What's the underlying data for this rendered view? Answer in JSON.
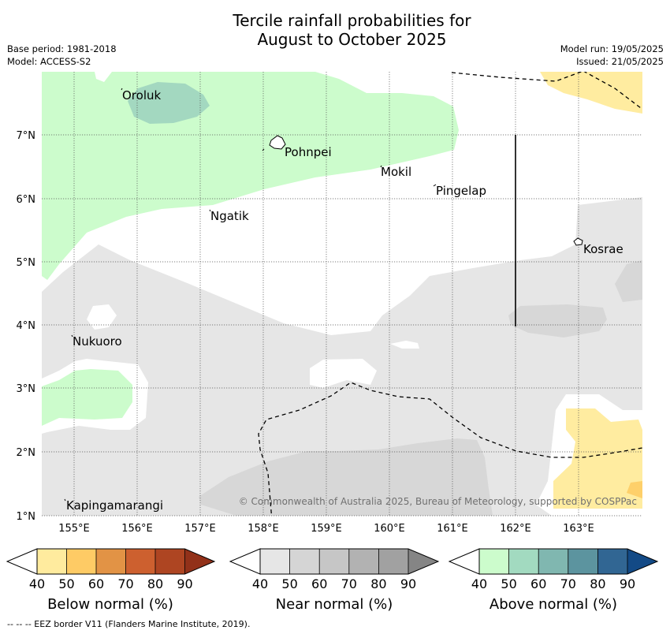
{
  "title": "Tercile rainfall probabilities for\nAugust to October 2025",
  "title_line1": "Tercile rainfall probabilities for",
  "title_line2": "August to October 2025",
  "base_period": "Base period: 1981-2018",
  "model": "Model: ACCESS-S2",
  "model_run": "Model run: 19/05/2025",
  "issued": "Issued: 21/05/2025",
  "map": {
    "x_ticks": [
      "155°E",
      "156°E",
      "157°E",
      "158°E",
      "159°E",
      "160°E",
      "161°E",
      "162°E",
      "163°E"
    ],
    "y_ticks": [
      "7°N",
      "6°N",
      "5°N",
      "4°N",
      "3°N",
      "2°N",
      "1°N"
    ],
    "places": [
      "Oroluk",
      "Pohnpei",
      "Mokil",
      "Pingelap",
      "Ngatik",
      "Kosrae",
      "Nukuoro",
      "Kapingamarangi"
    ],
    "copyright": "© Commonwealth of Australia 2025, Bureau of Meteorology, supported by COSPPac",
    "colors": {
      "above_40": "#ccfccc",
      "above_50": "#a3d8c0",
      "near_40": "#e6e6e6",
      "near_50": "#d7d7d7",
      "below_40": "#ffeca0",
      "below_50": "#fed06a"
    }
  },
  "colorbars": [
    {
      "title": "Below normal (%)",
      "ticks": [
        "40",
        "50",
        "60",
        "70",
        "80",
        "90"
      ],
      "colors": [
        "#ffffff",
        "#ffeb9e",
        "#fecb65",
        "#e29345",
        "#cd602f",
        "#ae4522",
        "#923119"
      ]
    },
    {
      "title": "Near normal (%)",
      "ticks": [
        "40",
        "50",
        "60",
        "70",
        "80",
        "90"
      ],
      "colors": [
        "#ffffff",
        "#e6e6e6",
        "#d5d5d5",
        "#c6c6c6",
        "#b2b2b2",
        "#a1a1a1",
        "#858585"
      ]
    },
    {
      "title": "Above normal (%)",
      "ticks": [
        "40",
        "50",
        "60",
        "70",
        "80",
        "90"
      ],
      "colors": [
        "#ffffff",
        "#ccfccc",
        "#a2dac0",
        "#80b7b0",
        "#5c949f",
        "#316693",
        "#134a86"
      ]
    }
  ],
  "footer": "--  --  -- EEZ border V11 (Flanders Marine Institute, 2019)."
}
